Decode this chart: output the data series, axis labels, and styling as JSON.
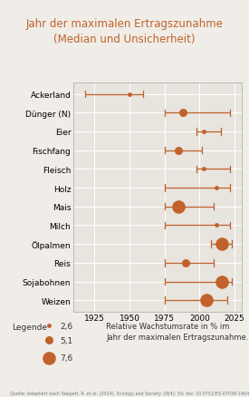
{
  "title": "Jahr der maximalen Ertragszunahme\n(Median und Unsicherheit)",
  "title_color": "#c0622a",
  "background_color": "#f0ede8",
  "plot_bg_color": "#e8e4de",
  "grid_color": "#ffffff",
  "dot_color": "#c0622a",
  "categories": [
    "Ackerland",
    "Dünger (N)",
    "Eier",
    "Fischfang",
    "Fleisch",
    "Holz",
    "Mais",
    "Milch",
    "Ölpalmen",
    "Reis",
    "Sojabohnen",
    "Weizen"
  ],
  "median": [
    1950,
    1988,
    2003,
    1985,
    2003,
    2012,
    1985,
    2012,
    2016,
    1990,
    2016,
    2005
  ],
  "low": [
    1918,
    1975,
    1998,
    1975,
    1998,
    1975,
    1975,
    1975,
    2008,
    1975,
    1975,
    1975
  ],
  "high": [
    1960,
    2022,
    2015,
    2002,
    2022,
    2022,
    2010,
    2022,
    2023,
    2010,
    2023,
    2020
  ],
  "dot_size": [
    2.6,
    5.1,
    2.6,
    5.1,
    2.6,
    2.6,
    7.6,
    2.6,
    7.6,
    5.1,
    7.6,
    7.6
  ],
  "xlim": [
    1910,
    2030
  ],
  "xticks": [
    1925,
    1950,
    1975,
    2000,
    2025
  ],
  "legend_sizes": [
    2.6,
    5.1,
    7.6
  ],
  "legend_labels": [
    "2,6",
    "5,1",
    "7,6"
  ],
  "legend_title": "Legende",
  "legend_text": "Relative Wachstumsrate in % im\nJahr der maximalen Ertragszunahme.",
  "source_text": "Quelle: Adaptiert nach Seppelt, R. et al. (2014). Ecology and Society 19(4): 50; doi: 10.5751/ES-07039-190450"
}
